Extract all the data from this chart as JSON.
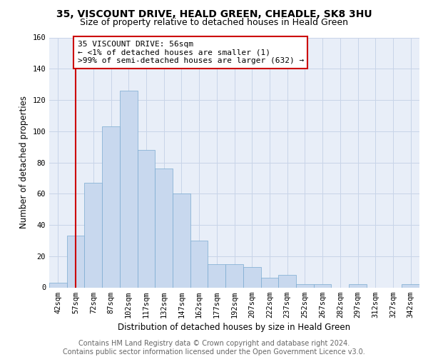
{
  "title": "35, VISCOUNT DRIVE, HEALD GREEN, CHEADLE, SK8 3HU",
  "subtitle": "Size of property relative to detached houses in Heald Green",
  "xlabel": "Distribution of detached houses by size in Heald Green",
  "ylabel": "Number of detached properties",
  "categories": [
    "42sqm",
    "57sqm",
    "72sqm",
    "87sqm",
    "102sqm",
    "117sqm",
    "132sqm",
    "147sqm",
    "162sqm",
    "177sqm",
    "192sqm",
    "207sqm",
    "222sqm",
    "237sqm",
    "252sqm",
    "267sqm",
    "282sqm",
    "297sqm",
    "312sqm",
    "327sqm",
    "342sqm"
  ],
  "values": [
    3,
    33,
    67,
    103,
    126,
    88,
    76,
    60,
    30,
    15,
    15,
    13,
    6,
    8,
    2,
    2,
    0,
    2,
    0,
    0,
    2
  ],
  "bar_color": "#c8d8ee",
  "bar_edge_color": "#7aaad0",
  "annotation_line_color": "#cc0000",
  "annotation_box_color": "#cc0000",
  "annotation_text": "35 VISCOUNT DRIVE: 56sqm\n← <1% of detached houses are smaller (1)\n>99% of semi-detached houses are larger (632) →",
  "property_label": "57sqm",
  "ylim": [
    0,
    160
  ],
  "yticks": [
    0,
    20,
    40,
    60,
    80,
    100,
    120,
    140,
    160
  ],
  "footer_line1": "Contains HM Land Registry data © Crown copyright and database right 2024.",
  "footer_line2": "Contains public sector information licensed under the Open Government Licence v3.0.",
  "title_fontsize": 10,
  "subtitle_fontsize": 9,
  "axis_label_fontsize": 8.5,
  "tick_fontsize": 7.5,
  "annotation_fontsize": 8,
  "footer_fontsize": 7,
  "grid_color": "#c8d4e8",
  "background_color": "#e8eef8",
  "bar_width": 1.0
}
